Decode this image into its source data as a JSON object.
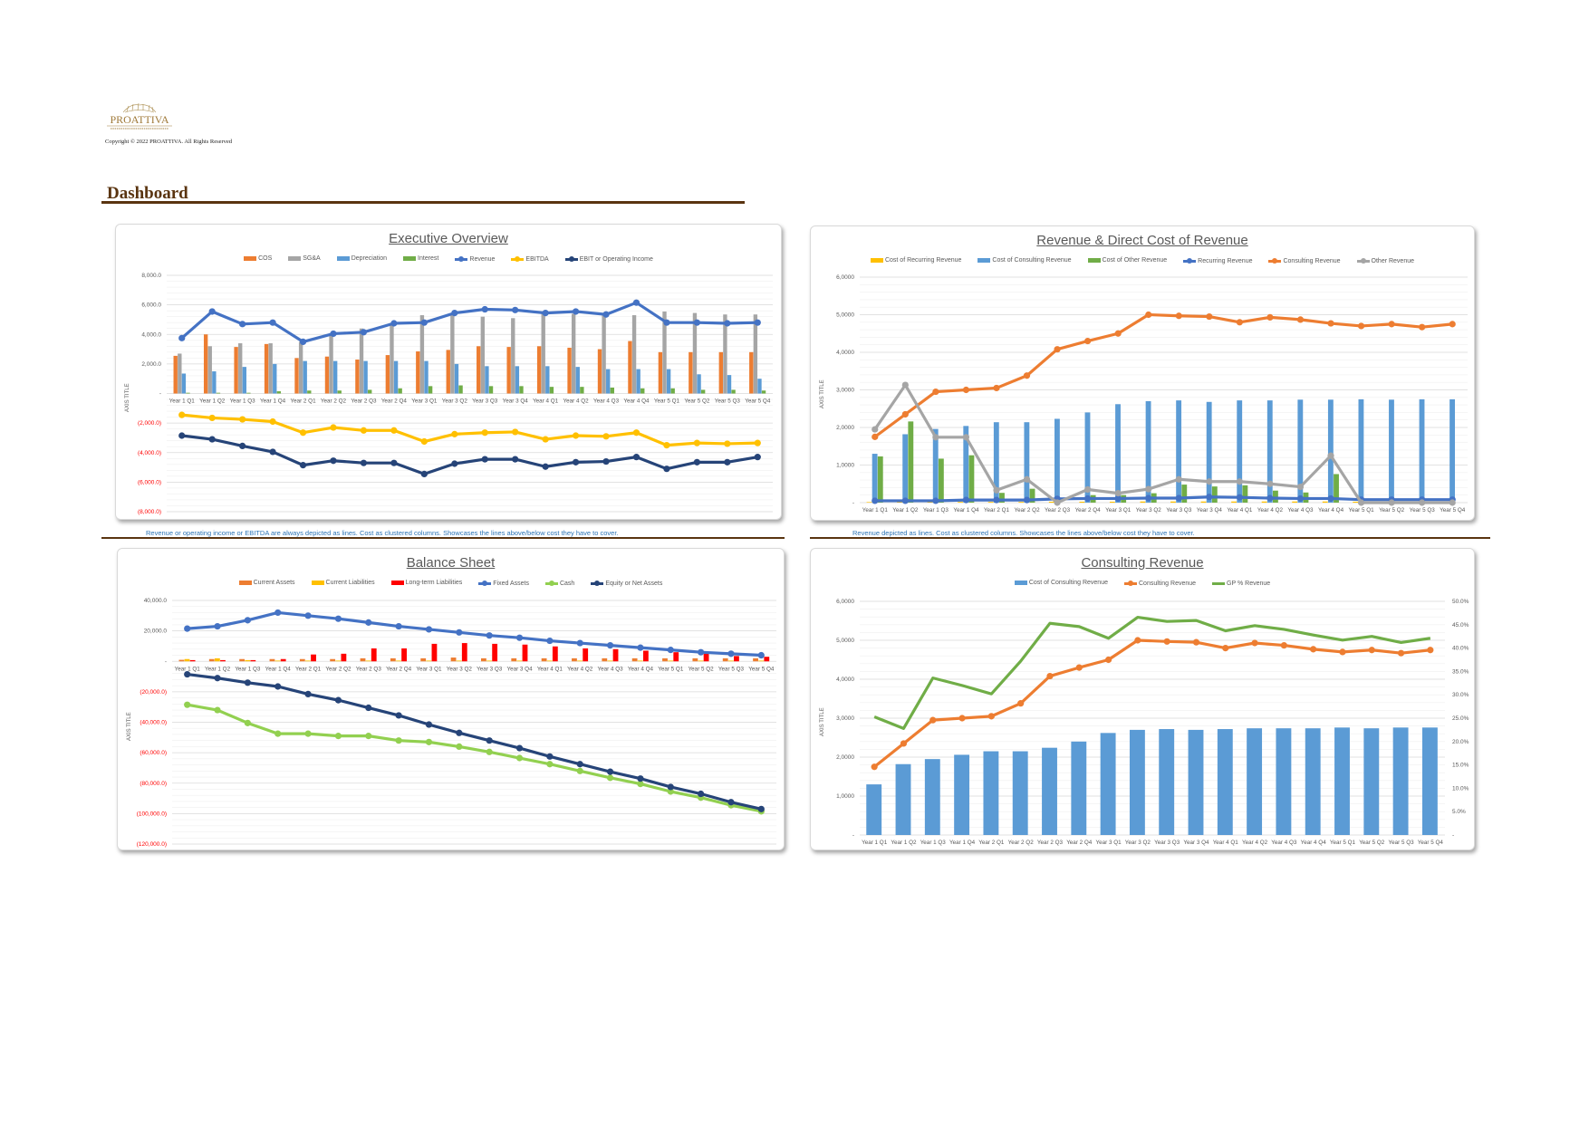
{
  "header": {
    "logo_text": "PROATTIVA",
    "copyright": "Copyright © 2022 PROATTIVA. All Rights Reserved",
    "page_title": "Dashboard"
  },
  "captions": {
    "executive": "Revenue or operating income or EBITDA are always depicted as lines. Cost as clustered columns. Showcases the lines above/below cost they have to cover.",
    "revenue": "Revenue depicted as lines. Cost as clustered columns. Showcases the lines above/below cost they have to cover."
  },
  "chart_data": [
    {
      "type": "bar+line",
      "title": "Executive Overview",
      "ylabel": "AXIS TITLE",
      "ylim": [
        -8000,
        8000
      ],
      "grid": true,
      "legend": "top",
      "categories": [
        "Year 1 Q1",
        "Year 1 Q2",
        "Year 1 Q3",
        "Year 1 Q4",
        "Year 2 Q1",
        "Year 2 Q2",
        "Year 2 Q3",
        "Year 2 Q4",
        "Year 3 Q1",
        "Year 3 Q2",
        "Year 3 Q3",
        "Year 3 Q4",
        "Year 4 Q1",
        "Year 4 Q2",
        "Year 4 Q3",
        "Year 4 Q4",
        "Year 5 Q1",
        "Year 5 Q2",
        "Year 5 Q3",
        "Year 5 Q4"
      ],
      "yticks": [
        {
          "value": 8000,
          "label": "8,000.0"
        },
        {
          "value": 6000,
          "label": "6,000.0"
        },
        {
          "value": 4000,
          "label": "4,000.0"
        },
        {
          "value": 2000,
          "label": "2,000.0"
        },
        {
          "value": 0,
          "label": "-"
        },
        {
          "value": -2000,
          "label": "(2,000.0)"
        },
        {
          "value": -4000,
          "label": "(4,000.0)"
        },
        {
          "value": -6000,
          "label": "(6,000.0)"
        },
        {
          "value": -8000,
          "label": "(8,000.0)"
        }
      ],
      "series": [
        {
          "name": "COS",
          "kind": "bar",
          "color": "#ED7D31",
          "values": [
            2550,
            4000,
            3150,
            3350,
            2400,
            2500,
            2300,
            2600,
            2850,
            2950,
            3200,
            3150,
            3200,
            3100,
            3000,
            3550,
            2800,
            2800,
            2800,
            2800
          ]
        },
        {
          "name": "SG&A",
          "kind": "bar",
          "color": "#A5A5A5",
          "values": [
            2700,
            3200,
            3400,
            3400,
            3500,
            3900,
            4400,
            4700,
            5300,
            5400,
            5200,
            5100,
            5400,
            5400,
            5300,
            5300,
            5550,
            5450,
            5350,
            5350
          ]
        },
        {
          "name": "Depreciation",
          "kind": "bar",
          "color": "#5B9BD5",
          "values": [
            1350,
            1500,
            1800,
            2000,
            2200,
            2200,
            2200,
            2200,
            2200,
            2000,
            1850,
            1850,
            1850,
            1800,
            1650,
            1650,
            1650,
            1300,
            1250,
            1000
          ]
        },
        {
          "name": "Interest",
          "kind": "bar",
          "color": "#70AD47",
          "values": [
            50,
            50,
            50,
            150,
            200,
            200,
            250,
            350,
            500,
            550,
            500,
            500,
            450,
            450,
            400,
            350,
            350,
            250,
            250,
            200
          ]
        },
        {
          "name": "Revenue",
          "kind": "line",
          "marker": true,
          "color": "#4472C4",
          "values": [
            3750,
            5550,
            4700,
            4800,
            3500,
            4050,
            4150,
            4750,
            4800,
            5450,
            5700,
            5650,
            5450,
            5550,
            5350,
            6150,
            4800,
            4800,
            4750,
            4800
          ]
        },
        {
          "name": "EBITDA",
          "kind": "line",
          "marker": true,
          "color": "#FFC000",
          "values": [
            -1450,
            -1650,
            -1750,
            -1900,
            -2650,
            -2300,
            -2500,
            -2500,
            -3250,
            -2750,
            -2650,
            -2600,
            -3100,
            -2850,
            -2900,
            -2650,
            -3500,
            -3350,
            -3400,
            -3350
          ]
        },
        {
          "name": "EBIT or Operating Income",
          "kind": "line",
          "marker": true,
          "color": "#264478",
          "values": [
            -2850,
            -3100,
            -3550,
            -3950,
            -4850,
            -4550,
            -4700,
            -4700,
            -5450,
            -4750,
            -4450,
            -4450,
            -4950,
            -4650,
            -4600,
            -4300,
            -5100,
            -4650,
            -4650,
            -4300
          ]
        }
      ]
    },
    {
      "type": "bar+line",
      "title": "Revenue & Direct Cost of Revenue",
      "ylabel": "AXIS TITLE",
      "ylim": [
        0,
        6000
      ],
      "grid": true,
      "legend": "top",
      "categories": [
        "Year 1 Q1",
        "Year 1 Q2",
        "Year 1 Q3",
        "Year 1 Q4",
        "Year 2 Q1",
        "Year 2 Q2",
        "Year 2 Q3",
        "Year 2 Q4",
        "Year 3 Q1",
        "Year 3 Q2",
        "Year 3 Q3",
        "Year 3 Q4",
        "Year 4 Q1",
        "Year 4 Q2",
        "Year 4 Q3",
        "Year 4 Q4",
        "Year 5 Q1",
        "Year 5 Q2",
        "Year 5 Q3",
        "Year 5 Q4"
      ],
      "yticks": [
        {
          "value": 6000,
          "label": "6,0000"
        },
        {
          "value": 5000,
          "label": "5,0000"
        },
        {
          "value": 4000,
          "label": "4,0000"
        },
        {
          "value": 3000,
          "label": "3,0000"
        },
        {
          "value": 2000,
          "label": "2,0000"
        },
        {
          "value": 1000,
          "label": "1,0000"
        },
        {
          "value": 0,
          "label": "-"
        }
      ],
      "series": [
        {
          "name": "Cost of Recurring Revenue",
          "kind": "bar",
          "color": "#FFC000",
          "values": [
            15,
            15,
            15,
            20,
            20,
            20,
            25,
            25,
            25,
            30,
            30,
            30,
            30,
            30,
            30,
            30,
            25,
            25,
            25,
            25
          ]
        },
        {
          "name": "Cost of Consulting Revenue",
          "kind": "bar",
          "color": "#5B9BD5",
          "values": [
            1300,
            1820,
            1960,
            2040,
            2140,
            2140,
            2230,
            2400,
            2620,
            2700,
            2720,
            2680,
            2720,
            2720,
            2740,
            2740,
            2750,
            2740,
            2750,
            2750
          ]
        },
        {
          "name": "Cost of Other Revenue",
          "kind": "bar",
          "color": "#70AD47",
          "values": [
            1230,
            2160,
            1170,
            1260,
            260,
            370,
            0,
            200,
            200,
            250,
            480,
            430,
            460,
            320,
            270,
            760,
            0,
            0,
            0,
            0
          ]
        },
        {
          "name": "Recurring Revenue",
          "kind": "line",
          "marker": true,
          "color": "#4472C4",
          "values": [
            50,
            50,
            50,
            70,
            70,
            70,
            100,
            110,
            110,
            120,
            120,
            150,
            140,
            120,
            110,
            110,
            80,
            80,
            80,
            80
          ]
        },
        {
          "name": "Consulting Revenue",
          "kind": "line",
          "marker": true,
          "color": "#ED7D31",
          "values": [
            1750,
            2350,
            2950,
            3000,
            3050,
            3380,
            4080,
            4300,
            4500,
            5000,
            4970,
            4950,
            4800,
            4930,
            4870,
            4770,
            4700,
            4750,
            4670,
            4750
          ]
        },
        {
          "name": "Other Revenue",
          "kind": "line",
          "marker": true,
          "color": "#A5A5A5",
          "values": [
            1950,
            3130,
            1740,
            1740,
            330,
            620,
            0,
            350,
            250,
            360,
            620,
            560,
            560,
            500,
            420,
            1250,
            0,
            0,
            0,
            0
          ]
        }
      ]
    },
    {
      "type": "bar+line",
      "title": "Balance Sheet",
      "ylabel": "AXIS TITLE",
      "ylim": [
        -120000,
        40000
      ],
      "grid": true,
      "legend": "top",
      "categories": [
        "Year 1 Q1",
        "Year 1 Q2",
        "Year 1 Q3",
        "Year 1 Q4",
        "Year 2 Q1",
        "Year 2 Q2",
        "Year 2 Q3",
        "Year 2 Q4",
        "Year 3 Q1",
        "Year 3 Q2",
        "Year 3 Q3",
        "Year 3 Q4",
        "Year 4 Q1",
        "Year 4 Q2",
        "Year 4 Q3",
        "Year 4 Q4",
        "Year 5 Q1",
        "Year 5 Q2",
        "Year 5 Q3",
        "Year 5 Q4"
      ],
      "yticks": [
        {
          "value": 40000,
          "label": "40,000.0"
        },
        {
          "value": 20000,
          "label": "20,000.0"
        },
        {
          "value": 0,
          "label": "-"
        },
        {
          "value": -20000,
          "label": "(20,000.0)"
        },
        {
          "value": -40000,
          "label": "(40,000.0)"
        },
        {
          "value": -60000,
          "label": "(60,000.0)"
        },
        {
          "value": -80000,
          "label": "(80,000.0)"
        },
        {
          "value": -100000,
          "label": "(100,000.0)"
        },
        {
          "value": -120000,
          "label": "(120,000.0)"
        }
      ],
      "series": [
        {
          "name": "Current Assets",
          "kind": "bar",
          "color": "#ED7D31",
          "values": [
            1000,
            1500,
            1500,
            1500,
            1500,
            1500,
            2000,
            2000,
            2000,
            2500,
            2000,
            2000,
            2000,
            2000,
            2000,
            2000,
            2000,
            2000,
            2000,
            2000
          ]
        },
        {
          "name": "Current Liabilities",
          "kind": "bar",
          "color": "#FFC000",
          "values": [
            1500,
            2000,
            800,
            500,
            500,
            500,
            500,
            500,
            500,
            500,
            500,
            500,
            500,
            500,
            500,
            500,
            500,
            500,
            500,
            500
          ]
        },
        {
          "name": "Long-term Liabilities",
          "kind": "bar",
          "color": "#FF0000",
          "values": [
            800,
            800,
            800,
            1500,
            4500,
            5000,
            8500,
            8500,
            11500,
            12000,
            11500,
            11000,
            9800,
            8500,
            8000,
            7000,
            6000,
            5000,
            3500,
            3000
          ]
        },
        {
          "name": "Fixed Assets",
          "kind": "line",
          "marker": true,
          "color": "#4472C4",
          "values": [
            21500,
            23000,
            27000,
            32000,
            30000,
            28000,
            25500,
            23000,
            21000,
            19000,
            17000,
            15500,
            13500,
            12000,
            10500,
            9000,
            7500,
            6000,
            5000,
            4000
          ]
        },
        {
          "name": "Cash",
          "kind": "line",
          "marker": true,
          "color": "#92D050",
          "values": [
            -28500,
            -32000,
            -40500,
            -47500,
            -47500,
            -49000,
            -49000,
            -52000,
            -53000,
            -56000,
            -59500,
            -63500,
            -67500,
            -72000,
            -76500,
            -80500,
            -85500,
            -89500,
            -94500,
            -98500
          ]
        },
        {
          "name": "Equity or Net Assets",
          "kind": "line",
          "marker": true,
          "color": "#264478",
          "values": [
            -8500,
            -11000,
            -14000,
            -16500,
            -21500,
            -25500,
            -30500,
            -35500,
            -41500,
            -47000,
            -52000,
            -57000,
            -62500,
            -67500,
            -72500,
            -77000,
            -82500,
            -87000,
            -92500,
            -97000
          ]
        }
      ]
    },
    {
      "type": "bar+line",
      "title": "Consulting Revenue",
      "ylabel": "AXIS TITLE",
      "ylim": [
        0,
        6000
      ],
      "y2lim": [
        0,
        50
      ],
      "grid": true,
      "legend": "top",
      "categories": [
        "Year 1 Q1",
        "Year 1 Q2",
        "Year 1 Q3",
        "Year 1 Q4",
        "Year 2 Q1",
        "Year 2 Q2",
        "Year 2 Q3",
        "Year 2 Q4",
        "Year 3 Q1",
        "Year 3 Q2",
        "Year 3 Q3",
        "Year 3 Q4",
        "Year 4 Q1",
        "Year 4 Q2",
        "Year 4 Q3",
        "Year 4 Q4",
        "Year 5 Q1",
        "Year 5 Q2",
        "Year 5 Q3",
        "Year 5 Q4"
      ],
      "yticks": [
        {
          "value": 6000,
          "label": "6,0000"
        },
        {
          "value": 5000,
          "label": "5,0000"
        },
        {
          "value": 4000,
          "label": "4,0000"
        },
        {
          "value": 3000,
          "label": "3,0000"
        },
        {
          "value": 2000,
          "label": "2,0000"
        },
        {
          "value": 1000,
          "label": "1,0000"
        },
        {
          "value": 0,
          "label": "-"
        }
      ],
      "y2ticks": [
        {
          "value": 50,
          "label": "50.0%"
        },
        {
          "value": 45,
          "label": "45.0%"
        },
        {
          "value": 40,
          "label": "40.0%"
        },
        {
          "value": 35,
          "label": "35.0%"
        },
        {
          "value": 30,
          "label": "30.0%"
        },
        {
          "value": 25,
          "label": "25.0%"
        },
        {
          "value": 20,
          "label": "20.0%"
        },
        {
          "value": 15,
          "label": "15.0%"
        },
        {
          "value": 10,
          "label": "10.0%"
        },
        {
          "value": 5,
          "label": "5.0%"
        },
        {
          "value": 0,
          "label": "-"
        }
      ],
      "series": [
        {
          "name": "Cost of Consulting Revenue",
          "kind": "bar",
          "color": "#5B9BD5",
          "values": [
            1300,
            1820,
            1950,
            2060,
            2150,
            2150,
            2240,
            2400,
            2620,
            2700,
            2720,
            2700,
            2720,
            2740,
            2740,
            2740,
            2760,
            2740,
            2760,
            2760
          ]
        },
        {
          "name": "Consulting Revenue",
          "kind": "line",
          "marker": true,
          "color": "#ED7D31",
          "values": [
            1750,
            2350,
            2950,
            3000,
            3050,
            3380,
            4080,
            4300,
            4500,
            5000,
            4970,
            4950,
            4800,
            4930,
            4870,
            4770,
            4700,
            4750,
            4670,
            4750
          ]
        },
        {
          "name": "GP % Revenue",
          "kind": "line",
          "marker": false,
          "axis": "y2",
          "color": "#70AD47",
          "values": [
            25.3,
            22.8,
            33.6,
            32.0,
            30.2,
            37.2,
            45.3,
            44.6,
            42.1,
            46.6,
            45.7,
            45.9,
            43.7,
            44.8,
            44.0,
            42.8,
            41.7,
            42.5,
            41.2,
            42.1
          ]
        }
      ]
    }
  ]
}
